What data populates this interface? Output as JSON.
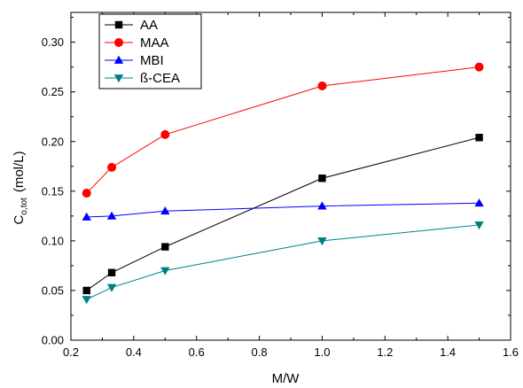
{
  "chart_data": {
    "type": "line",
    "title": "",
    "xlabel": "M/W",
    "ylabel": {
      "main": "C",
      "sub": "o,tot",
      "unit": "(mol/L)"
    },
    "xlim": [
      0.2,
      1.6
    ],
    "ylim": [
      0.0,
      0.33
    ],
    "xticks": [
      "0.2",
      "0.4",
      "0.6",
      "0.8",
      "1.0",
      "1.2",
      "1.4",
      "1.6"
    ],
    "yticks": [
      "0.00",
      "0.05",
      "0.10",
      "0.15",
      "0.20",
      "0.25",
      "0.30"
    ],
    "grid": false,
    "legend_position": "top-left",
    "x": [
      0.25,
      0.33,
      0.5,
      1.0,
      1.5
    ],
    "series": [
      {
        "name": "AA",
        "color": "#000000",
        "marker": "square",
        "values": [
          0.05,
          0.068,
          0.094,
          0.163,
          0.204
        ]
      },
      {
        "name": "MAA",
        "color": "#ff0000",
        "marker": "circle",
        "values": [
          0.148,
          0.174,
          0.207,
          0.256,
          0.275
        ]
      },
      {
        "name": "MBI",
        "color": "#0000ff",
        "marker": "triangle-up",
        "values": [
          0.124,
          0.125,
          0.13,
          0.135,
          0.138
        ]
      },
      {
        "name": "ß-CEA",
        "color": "#008080",
        "marker": "triangle-down",
        "values": [
          0.041,
          0.053,
          0.07,
          0.1,
          0.116
        ]
      }
    ]
  }
}
